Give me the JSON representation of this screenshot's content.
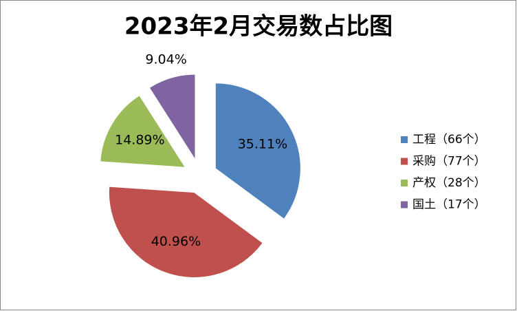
{
  "chart_data": {
    "type": "pie",
    "title": "2023年2月交易数占比图",
    "categories": [
      "工程（66个）",
      "采购（77个）",
      "产权（28个）",
      "国土（17个）"
    ],
    "values": [
      35.11,
      40.96,
      14.89,
      9.04
    ],
    "value_labels": [
      "35.11%",
      "40.96%",
      "14.89%",
      "9.04%"
    ],
    "colors": [
      "#4f81bd",
      "#c0504d",
      "#9bbb59",
      "#8064a2"
    ],
    "legend": "right"
  }
}
